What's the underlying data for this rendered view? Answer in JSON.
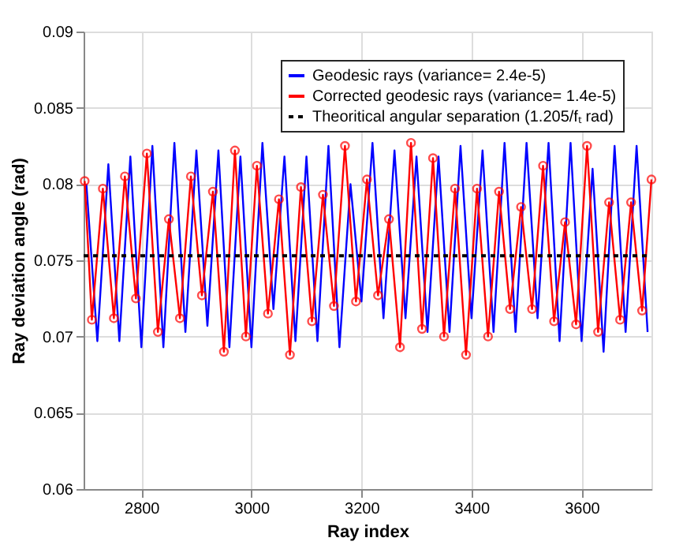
{
  "chart_data": {
    "type": "line",
    "xlabel": "Ray index",
    "ylabel": "Ray deviation angle (rad)",
    "xlim": [
      2695,
      3727
    ],
    "xticks": [
      2800,
      3000,
      3200,
      3400,
      3600
    ],
    "ylim": [
      0.06,
      0.09
    ],
    "yticks": [
      0.06,
      0.065,
      0.07,
      0.075,
      0.08,
      0.085,
      0.09
    ],
    "grid": true,
    "legend": "top right",
    "series": [
      {
        "name": "Geodesic rays (variance= 2.4e-5)",
        "color": "#0000ff",
        "line_style": "solid",
        "marker": "none",
        "x": [
          2700,
          2720,
          2740,
          2760,
          2780,
          2800,
          2820,
          2840,
          2860,
          2880,
          2900,
          2920,
          2940,
          2960,
          2980,
          3000,
          3020,
          3040,
          3060,
          3080,
          3100,
          3120,
          3140,
          3160,
          3180,
          3200,
          3220,
          3240,
          3260,
          3280,
          3300,
          3320,
          3340,
          3360,
          3380,
          3400,
          3420,
          3440,
          3460,
          3480,
          3500,
          3520,
          3540,
          3560,
          3580,
          3600,
          3620,
          3640,
          3660,
          3680,
          3700,
          3720
        ],
        "values": [
          0.08,
          0.0697,
          0.0813,
          0.0697,
          0.0818,
          0.0693,
          0.0825,
          0.0693,
          0.0827,
          0.0703,
          0.0822,
          0.0707,
          0.0822,
          0.0693,
          0.0818,
          0.0693,
          0.0827,
          0.0718,
          0.0818,
          0.0697,
          0.0818,
          0.0697,
          0.0825,
          0.0693,
          0.08,
          0.0723,
          0.0827,
          0.0712,
          0.0822,
          0.0712,
          0.0818,
          0.0703,
          0.0818,
          0.0703,
          0.0825,
          0.0712,
          0.0822,
          0.0703,
          0.0827,
          0.0703,
          0.0827,
          0.0712,
          0.0827,
          0.0697,
          0.0827,
          0.0697,
          0.081,
          0.069,
          0.0825,
          0.0703,
          0.0825,
          0.0703
        ]
      },
      {
        "name": "Corrected geodesic rays (variance= 1.4e-5)",
        "color": "#ff0000",
        "line_style": "solid",
        "marker": "circle",
        "x": [
          2697,
          2710,
          2730,
          2750,
          2770,
          2790,
          2810,
          2830,
          2850,
          2870,
          2890,
          2910,
          2930,
          2950,
          2970,
          2990,
          3010,
          3030,
          3050,
          3070,
          3090,
          3110,
          3130,
          3150,
          3170,
          3190,
          3210,
          3230,
          3250,
          3270,
          3290,
          3310,
          3330,
          3350,
          3370,
          3390,
          3410,
          3430,
          3450,
          3470,
          3490,
          3510,
          3530,
          3550,
          3570,
          3590,
          3610,
          3630,
          3650,
          3670,
          3690,
          3710,
          3727
        ],
        "values": [
          0.0802,
          0.0711,
          0.0797,
          0.0712,
          0.0805,
          0.0725,
          0.082,
          0.0703,
          0.0777,
          0.0712,
          0.0805,
          0.0727,
          0.0795,
          0.069,
          0.0822,
          0.07,
          0.0812,
          0.0715,
          0.079,
          0.0688,
          0.0798,
          0.071,
          0.0793,
          0.072,
          0.0825,
          0.0723,
          0.0803,
          0.0727,
          0.0777,
          0.0693,
          0.0827,
          0.0705,
          0.0817,
          0.07,
          0.0797,
          0.0688,
          0.0797,
          0.07,
          0.0795,
          0.0718,
          0.0785,
          0.0718,
          0.0812,
          0.071,
          0.0775,
          0.0708,
          0.0825,
          0.0703,
          0.0788,
          0.0711,
          0.0788,
          0.0717,
          0.0803
        ]
      },
      {
        "name": "Theoritical angular separation (1.205/fₜ rad)",
        "color": "#000000",
        "line_style": "dotted",
        "marker": "none",
        "x": [
          2695,
          3727
        ],
        "values": [
          0.0753,
          0.0753
        ]
      }
    ]
  }
}
